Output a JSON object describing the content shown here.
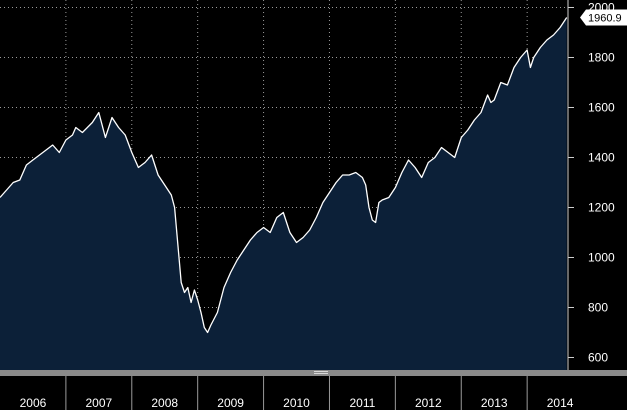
{
  "colors": {
    "background": "#000000",
    "area_fill": "#0c2038",
    "line": "#ffffff",
    "grid": "#9a9a9a",
    "text": "#ffffff",
    "axis_bar": "#8a8a8a",
    "label_box": "#ffffff"
  },
  "chart_data": {
    "type": "area",
    "title": "",
    "xlabel": "",
    "ylabel": "",
    "grid": true,
    "ylim": [
      550,
      2030
    ],
    "xlim": [
      2006.0,
      2014.62
    ],
    "y_ticks": [
      "600",
      "800",
      "1000",
      "1200",
      "1400",
      "1600",
      "1800",
      "2000"
    ],
    "x_ticks": [
      "2006",
      "2007",
      "2008",
      "2009",
      "2010",
      "2011",
      "2012",
      "2013",
      "2014"
    ],
    "last_value_label": "1960.9",
    "series": [
      {
        "x": [
          2006.0,
          2006.1,
          2006.2,
          2006.3,
          2006.4,
          2006.5,
          2006.6,
          2006.7,
          2006.8,
          2006.9,
          2007.0,
          2007.1,
          2007.15,
          2007.25,
          2007.4,
          2007.5,
          2007.55,
          2007.6,
          2007.7,
          2007.8,
          2007.9,
          2008.0,
          2008.1,
          2008.2,
          2008.3,
          2008.4,
          2008.5,
          2008.6,
          2008.65,
          2008.7,
          2008.75,
          2008.8,
          2008.85,
          2008.9,
          2008.95,
          2009.0,
          2009.05,
          2009.1,
          2009.15,
          2009.2,
          2009.3,
          2009.4,
          2009.5,
          2009.6,
          2009.7,
          2009.8,
          2009.9,
          2010.0,
          2010.1,
          2010.2,
          2010.3,
          2010.4,
          2010.5,
          2010.6,
          2010.7,
          2010.8,
          2010.9,
          2011.0,
          2011.1,
          2011.2,
          2011.3,
          2011.4,
          2011.5,
          2011.55,
          2011.6,
          2011.65,
          2011.7,
          2011.75,
          2011.8,
          2011.9,
          2012.0,
          2012.1,
          2012.2,
          2012.3,
          2012.4,
          2012.5,
          2012.6,
          2012.7,
          2012.8,
          2012.9,
          2013.0,
          2013.1,
          2013.2,
          2013.3,
          2013.4,
          2013.45,
          2013.5,
          2013.6,
          2013.7,
          2013.8,
          2013.9,
          2014.0,
          2014.05,
          2014.1,
          2014.2,
          2014.3,
          2014.4,
          2014.5,
          2014.55,
          2014.6
        ],
        "y": [
          1240,
          1270,
          1300,
          1310,
          1370,
          1390,
          1410,
          1430,
          1450,
          1420,
          1470,
          1490,
          1520,
          1500,
          1540,
          1580,
          1530,
          1480,
          1560,
          1520,
          1490,
          1420,
          1360,
          1380,
          1410,
          1330,
          1290,
          1250,
          1200,
          1050,
          900,
          860,
          880,
          820,
          870,
          830,
          780,
          720,
          700,
          730,
          780,
          880,
          940,
          990,
          1030,
          1070,
          1100,
          1120,
          1100,
          1160,
          1180,
          1100,
          1060,
          1080,
          1110,
          1160,
          1220,
          1260,
          1300,
          1330,
          1330,
          1340,
          1320,
          1290,
          1200,
          1150,
          1140,
          1220,
          1230,
          1240,
          1280,
          1340,
          1390,
          1360,
          1320,
          1380,
          1400,
          1440,
          1420,
          1400,
          1480,
          1510,
          1550,
          1580,
          1650,
          1620,
          1630,
          1700,
          1690,
          1760,
          1800,
          1830,
          1760,
          1800,
          1840,
          1870,
          1890,
          1920,
          1940,
          1960
        ]
      }
    ]
  }
}
